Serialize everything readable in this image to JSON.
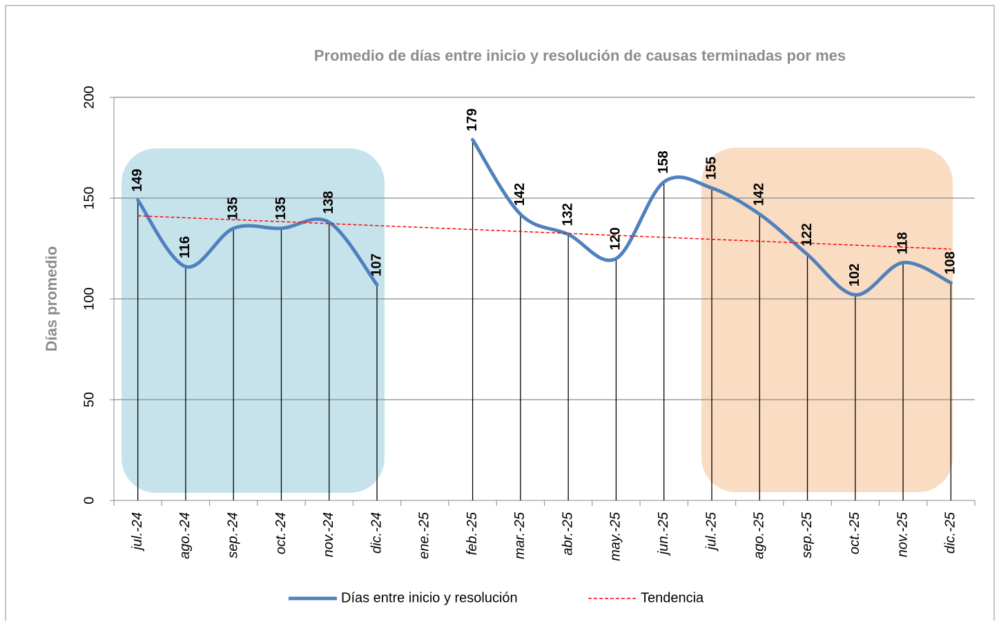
{
  "chart_data": {
    "type": "line",
    "title": "Promedio de días entre inicio y resolución de causas terminadas por mes",
    "ylabel": "Días promedio",
    "categories": [
      "jul.-24",
      "ago.-24",
      "sep.-24",
      "oct.-24",
      "nov.-24",
      "dic.-24",
      "ene.-25",
      "feb.-25",
      "mar.-25",
      "abr.-25",
      "may.-25",
      "jun.-25",
      "jul.-25",
      "ago.-25",
      "sep.-25",
      "oct.-25",
      "nov.-25",
      "dic.-25"
    ],
    "series": [
      {
        "name": "Días entre inicio y resolución",
        "color": "#4f81bd",
        "values": [
          149,
          116,
          135,
          135,
          138,
          107,
          null,
          179,
          142,
          132,
          120,
          158,
          155,
          142,
          122,
          102,
          118,
          108
        ]
      }
    ],
    "trend": {
      "name": "Tendencia",
      "color": "#ff0000"
    },
    "ylim": [
      0,
      200
    ],
    "yticks": [
      0,
      50,
      100,
      150,
      200
    ],
    "grid": true,
    "legend": "bottom"
  }
}
